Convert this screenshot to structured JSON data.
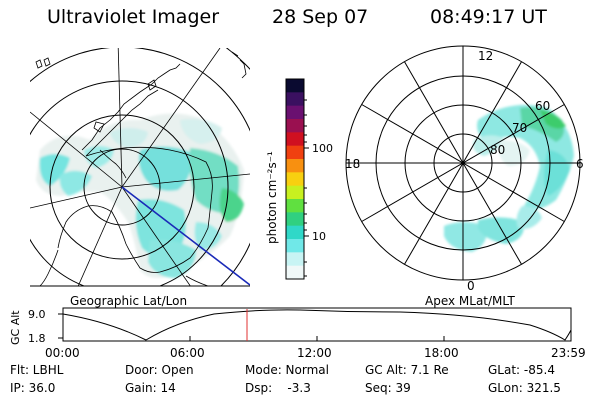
{
  "header": {
    "instrument": "Ultraviolet Imager",
    "date": "28 Sep 07",
    "time": "08:49:17 UT"
  },
  "colorbar": {
    "label": "photon cm⁻²s⁻¹",
    "ticks": [
      "100",
      "10"
    ],
    "colors": [
      "#0a0a30",
      "#3a1060",
      "#6a1070",
      "#9a1050",
      "#d01020",
      "#f04010",
      "#f89010",
      "#f8d010",
      "#c8f020",
      "#60e040",
      "#30d080",
      "#30d8c8",
      "#70e8e8",
      "#c8f4f4",
      "#f0f8f8"
    ]
  },
  "left_map": {
    "caption": "Geographic Lat/Lon"
  },
  "right_map": {
    "caption": "Apex MLat/MLT",
    "mlt_labels": {
      "top": "12",
      "left": "18",
      "right": "6",
      "bottom": "0"
    },
    "lat_labels": [
      "60",
      "70",
      "80"
    ]
  },
  "timeline": {
    "axis_label": "GC Alt",
    "y_ticks": [
      "9.0",
      "1.8"
    ],
    "x_ticks": [
      "00:00",
      "06:00",
      "12:00",
      "18:00",
      "23:59"
    ],
    "marker_color": "#e03030"
  },
  "info": {
    "row1": {
      "flt": "Flt: LBHL",
      "door": "Door: Open",
      "mode": "Mode: Normal",
      "gcalt": "GC Alt: 7.1 Re",
      "glat": "GLat: -85.4"
    },
    "row2": {
      "ip": "IP: 36.0",
      "gain": "Gain: 14",
      "dsp": "Dsp:    -3.3",
      "seq": "Seq: 39",
      "glon": "GLon: 321.5"
    }
  }
}
